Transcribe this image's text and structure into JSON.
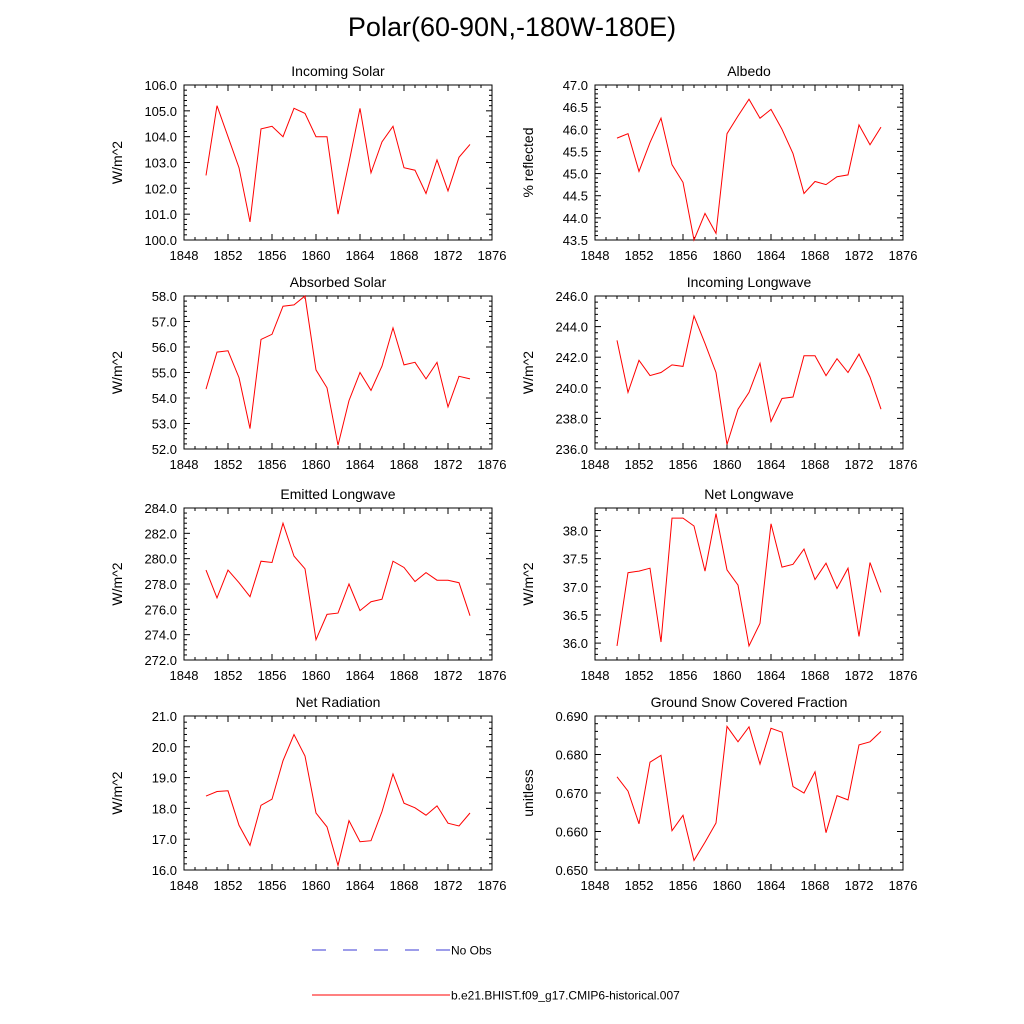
{
  "title": "Polar(60-90N,-180W-180E)",
  "colors": {
    "model": "#ff0000",
    "obs": "#3b3bd6",
    "axis": "#000000"
  },
  "legend": {
    "obs_label": "No Obs",
    "model_label": "b.e21.BHIST.f09_g17.CMIP6-historical.007"
  },
  "chart_data": [
    {
      "type": "line",
      "title": "Incoming Solar",
      "xlabel": "",
      "ylabel": "W/m^2",
      "xlim": [
        1848,
        1876
      ],
      "xticks": [
        1848,
        1852,
        1856,
        1860,
        1864,
        1868,
        1872,
        1876
      ],
      "ylim": [
        100.0,
        106.0
      ],
      "yticks": [
        100.0,
        101.0,
        102.0,
        103.0,
        104.0,
        105.0,
        106.0
      ],
      "ytick_labels": [
        "100.0",
        "101.0",
        "102.0",
        "103.0",
        "104.0",
        "105.0",
        "106.0"
      ],
      "x": [
        1850,
        1851,
        1852,
        1853,
        1854,
        1855,
        1856,
        1857,
        1858,
        1859,
        1860,
        1861,
        1862,
        1863,
        1864,
        1865,
        1866,
        1867,
        1868,
        1869,
        1870,
        1871,
        1872,
        1873,
        1874
      ],
      "series": [
        {
          "name": "b.e21.BHIST.f09_g17.CMIP6-historical.007",
          "values": [
            102.5,
            105.2,
            104.0,
            102.8,
            100.7,
            104.3,
            104.4,
            104.0,
            105.1,
            104.9,
            104.0,
            104.0,
            101.0,
            103.0,
            105.1,
            102.6,
            103.8,
            104.4,
            102.8,
            102.7,
            101.8,
            103.1,
            101.9,
            103.2,
            103.7
          ]
        }
      ]
    },
    {
      "type": "line",
      "title": "Albedo",
      "xlabel": "",
      "ylabel": "% reflected",
      "xlim": [
        1848,
        1876
      ],
      "xticks": [
        1848,
        1852,
        1856,
        1860,
        1864,
        1868,
        1872,
        1876
      ],
      "ylim": [
        43.5,
        47.0
      ],
      "yticks": [
        43.5,
        44.0,
        44.5,
        45.0,
        45.5,
        46.0,
        46.5,
        47.0
      ],
      "ytick_labels": [
        "43.5",
        "44.0",
        "44.5",
        "45.0",
        "45.5",
        "46.0",
        "46.5",
        "47.0"
      ],
      "x": [
        1850,
        1851,
        1852,
        1853,
        1854,
        1855,
        1856,
        1857,
        1858,
        1859,
        1860,
        1861,
        1862,
        1863,
        1864,
        1865,
        1866,
        1867,
        1868,
        1869,
        1870,
        1871,
        1872,
        1873,
        1874
      ],
      "series": [
        {
          "name": "b.e21.BHIST.f09_g17.CMIP6-historical.007",
          "values": [
            45.8,
            45.9,
            45.05,
            45.7,
            46.25,
            45.2,
            44.8,
            43.5,
            44.1,
            43.65,
            45.9,
            46.3,
            46.68,
            46.25,
            46.45,
            46.0,
            45.45,
            44.55,
            44.82,
            44.75,
            44.93,
            44.97,
            46.1,
            45.65,
            46.05
          ]
        }
      ]
    },
    {
      "type": "line",
      "title": "Absorbed Solar",
      "xlabel": "",
      "ylabel": "W/m^2",
      "xlim": [
        1848,
        1876
      ],
      "xticks": [
        1848,
        1852,
        1856,
        1860,
        1864,
        1868,
        1872,
        1876
      ],
      "ylim": [
        52.0,
        58.0
      ],
      "yticks": [
        52.0,
        53.0,
        54.0,
        55.0,
        56.0,
        57.0,
        58.0
      ],
      "ytick_labels": [
        "52.0",
        "53.0",
        "54.0",
        "55.0",
        "56.0",
        "57.0",
        "58.0"
      ],
      "x": [
        1850,
        1851,
        1852,
        1853,
        1854,
        1855,
        1856,
        1857,
        1858,
        1859,
        1860,
        1861,
        1862,
        1863,
        1864,
        1865,
        1866,
        1867,
        1868,
        1869,
        1870,
        1871,
        1872,
        1873,
        1874
      ],
      "series": [
        {
          "name": "b.e21.BHIST.f09_g17.CMIP6-historical.007",
          "values": [
            54.35,
            55.8,
            55.85,
            54.8,
            52.8,
            56.3,
            56.5,
            57.6,
            57.65,
            58.0,
            55.1,
            54.4,
            52.15,
            53.9,
            55.0,
            54.3,
            55.25,
            56.75,
            55.3,
            55.4,
            54.75,
            55.4,
            53.65,
            54.85,
            54.75
          ]
        }
      ]
    },
    {
      "type": "line",
      "title": "Incoming Longwave",
      "xlabel": "",
      "ylabel": "W/m^2",
      "xlim": [
        1848,
        1876
      ],
      "xticks": [
        1848,
        1852,
        1856,
        1860,
        1864,
        1868,
        1872,
        1876
      ],
      "ylim": [
        236.0,
        246.0
      ],
      "yticks": [
        236.0,
        238.0,
        240.0,
        242.0,
        244.0,
        246.0
      ],
      "ytick_labels": [
        "236.0",
        "238.0",
        "240.0",
        "242.0",
        "244.0",
        "246.0"
      ],
      "x": [
        1850,
        1851,
        1852,
        1853,
        1854,
        1855,
        1856,
        1857,
        1858,
        1859,
        1860,
        1861,
        1862,
        1863,
        1864,
        1865,
        1866,
        1867,
        1868,
        1869,
        1870,
        1871,
        1872,
        1873,
        1874
      ],
      "series": [
        {
          "name": "b.e21.BHIST.f09_g17.CMIP6-historical.007",
          "values": [
            243.1,
            239.7,
            241.8,
            240.8,
            241.0,
            241.5,
            241.4,
            244.7,
            242.9,
            241.0,
            236.3,
            238.6,
            239.7,
            241.6,
            237.8,
            239.3,
            239.4,
            242.1,
            242.1,
            240.8,
            241.9,
            241.0,
            242.2,
            240.7,
            238.6
          ]
        }
      ]
    },
    {
      "type": "line",
      "title": "Emitted Longwave",
      "xlabel": "",
      "ylabel": "W/m^2",
      "xlim": [
        1848,
        1876
      ],
      "xticks": [
        1848,
        1852,
        1856,
        1860,
        1864,
        1868,
        1872,
        1876
      ],
      "ylim": [
        272.0,
        284.0
      ],
      "yticks": [
        272.0,
        274.0,
        276.0,
        278.0,
        280.0,
        282.0,
        284.0
      ],
      "ytick_labels": [
        "272.0",
        "274.0",
        "276.0",
        "278.0",
        "280.0",
        "282.0",
        "284.0"
      ],
      "x": [
        1850,
        1851,
        1852,
        1853,
        1854,
        1855,
        1856,
        1857,
        1858,
        1859,
        1860,
        1861,
        1862,
        1863,
        1864,
        1865,
        1866,
        1867,
        1868,
        1869,
        1870,
        1871,
        1872,
        1873,
        1874
      ],
      "series": [
        {
          "name": "b.e21.BHIST.f09_g17.CMIP6-historical.007",
          "values": [
            279.1,
            276.9,
            279.1,
            278.1,
            277.0,
            279.8,
            279.7,
            282.8,
            280.2,
            279.2,
            273.6,
            275.6,
            275.7,
            278.0,
            275.9,
            276.6,
            276.8,
            279.8,
            279.3,
            278.2,
            278.9,
            278.3,
            278.3,
            278.1,
            275.5
          ]
        }
      ]
    },
    {
      "type": "line",
      "title": "Net Longwave",
      "xlabel": "",
      "ylabel": "W/m^2",
      "xlim": [
        1848,
        1876
      ],
      "xticks": [
        1848,
        1852,
        1856,
        1860,
        1864,
        1868,
        1872,
        1876
      ],
      "ylim": [
        35.7,
        38.4
      ],
      "yticks": [
        36.0,
        36.5,
        37.0,
        37.5,
        38.0
      ],
      "ytick_labels": [
        "36.0",
        "36.5",
        "37.0",
        "37.5",
        "38.0"
      ],
      "x": [
        1850,
        1851,
        1852,
        1853,
        1854,
        1855,
        1856,
        1857,
        1858,
        1859,
        1860,
        1861,
        1862,
        1863,
        1864,
        1865,
        1866,
        1867,
        1868,
        1869,
        1870,
        1871,
        1872,
        1873,
        1874
      ],
      "series": [
        {
          "name": "b.e21.BHIST.f09_g17.CMIP6-historical.007",
          "values": [
            35.95,
            37.25,
            37.28,
            37.33,
            36.02,
            38.22,
            38.22,
            38.08,
            37.28,
            38.3,
            37.3,
            37.03,
            35.95,
            36.35,
            38.12,
            37.35,
            37.4,
            37.67,
            37.13,
            37.42,
            36.97,
            37.33,
            36.12,
            37.43,
            36.9
          ]
        }
      ]
    },
    {
      "type": "line",
      "title": "Net Radiation",
      "xlabel": "",
      "ylabel": "W/m^2",
      "xlim": [
        1848,
        1876
      ],
      "xticks": [
        1848,
        1852,
        1856,
        1860,
        1864,
        1868,
        1872,
        1876
      ],
      "ylim": [
        16.0,
        21.0
      ],
      "yticks": [
        16.0,
        17.0,
        18.0,
        19.0,
        20.0,
        21.0
      ],
      "ytick_labels": [
        "16.0",
        "17.0",
        "18.0",
        "19.0",
        "20.0",
        "21.0"
      ],
      "x": [
        1850,
        1851,
        1852,
        1853,
        1854,
        1855,
        1856,
        1857,
        1858,
        1859,
        1860,
        1861,
        1862,
        1863,
        1864,
        1865,
        1866,
        1867,
        1868,
        1869,
        1870,
        1871,
        1872,
        1873,
        1874
      ],
      "series": [
        {
          "name": "b.e21.BHIST.f09_g17.CMIP6-historical.007",
          "values": [
            18.4,
            18.55,
            18.57,
            17.45,
            16.8,
            18.1,
            18.3,
            19.55,
            20.4,
            19.7,
            17.85,
            17.4,
            16.15,
            17.6,
            16.92,
            16.95,
            17.9,
            19.12,
            18.17,
            18.02,
            17.78,
            18.08,
            17.52,
            17.43,
            17.85
          ]
        }
      ]
    },
    {
      "type": "line",
      "title": "Ground Snow Covered Fraction",
      "xlabel": "",
      "ylabel": "unitless",
      "xlim": [
        1848,
        1876
      ],
      "xticks": [
        1848,
        1852,
        1856,
        1860,
        1864,
        1868,
        1872,
        1876
      ],
      "ylim": [
        0.65,
        0.69
      ],
      "yticks": [
        0.65,
        0.66,
        0.67,
        0.68,
        0.69
      ],
      "ytick_labels": [
        "0.650",
        "0.660",
        "0.670",
        "0.680",
        "0.690"
      ],
      "x": [
        1850,
        1851,
        1852,
        1853,
        1854,
        1855,
        1856,
        1857,
        1858,
        1859,
        1860,
        1861,
        1862,
        1863,
        1864,
        1865,
        1866,
        1867,
        1868,
        1869,
        1870,
        1871,
        1872,
        1873,
        1874
      ],
      "series": [
        {
          "name": "b.e21.BHIST.f09_g17.CMIP6-historical.007",
          "values": [
            0.6742,
            0.6705,
            0.662,
            0.678,
            0.6798,
            0.6602,
            0.6642,
            0.6525,
            0.6572,
            0.6622,
            0.6873,
            0.6833,
            0.6872,
            0.6775,
            0.6868,
            0.6858,
            0.6717,
            0.67,
            0.6755,
            0.6597,
            0.6693,
            0.6682,
            0.6825,
            0.6833,
            0.686
          ]
        }
      ]
    }
  ]
}
